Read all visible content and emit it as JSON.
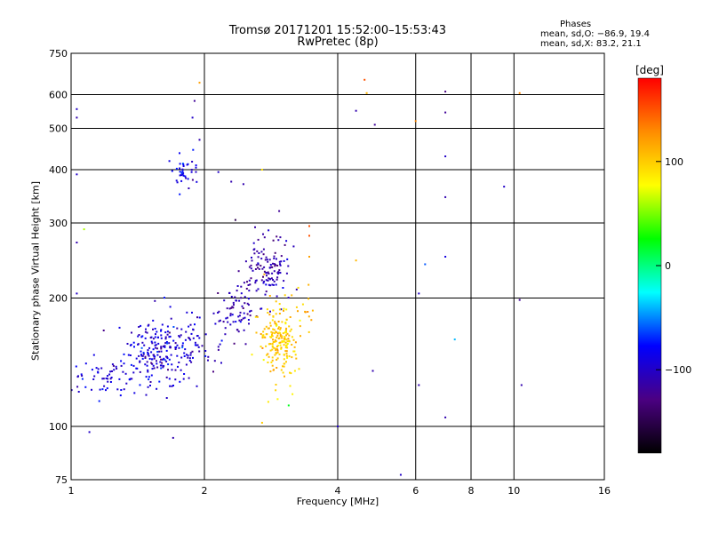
{
  "header": {
    "title_line1": "Tromsø 20171201 15:52:00–15:53:43",
    "title_line2": "RwPretec (8p)",
    "stats_title": "Phases",
    "stats_line1": "mean, sd,O: −86.9, 19.4",
    "stats_line2": "mean, sd,X:  83.2, 21.1"
  },
  "colorbar": {
    "label": "[deg]",
    "ticks": [
      {
        "value": 100,
        "label": "100"
      },
      {
        "value": 0,
        "label": "0"
      },
      {
        "value": -100,
        "label": "−100"
      }
    ],
    "range": [
      -180,
      180
    ],
    "colors": [
      "#000000",
      "#4b0082",
      "#0000ff",
      "#00ffff",
      "#00ff00",
      "#ffff00",
      "#ff8c00",
      "#ff0000"
    ]
  },
  "chart_data": {
    "type": "scatter",
    "title": "Tromsø 20171201 15:52:00–15:53:43",
    "subtitle": "RwPretec (8p)",
    "xlabel": "Frequency [MHz]",
    "ylabel": "Stationary phase Virtual Height [km]",
    "x_scale": "log",
    "y_scale": "log",
    "xlim": [
      1,
      16
    ],
    "ylim": [
      75,
      750
    ],
    "x_ticks": [
      1,
      2,
      4,
      6,
      8,
      10,
      16
    ],
    "y_ticks": [
      75,
      100,
      200,
      300,
      400,
      500,
      600,
      750
    ],
    "grid": true,
    "color_meaning": "phase [deg]",
    "clusters": [
      {
        "fc": 1.05,
        "fs": 0.03,
        "hc": 130,
        "hs": 0.05,
        "phase": -95,
        "ps": 10,
        "n": 14
      },
      {
        "fc": 1.22,
        "fs": 0.05,
        "hc": 130,
        "hs": 0.05,
        "phase": -95,
        "ps": 10,
        "n": 42
      },
      {
        "fc": 1.6,
        "fs": 0.09,
        "hc": 150,
        "hs": 0.09,
        "phase": -95,
        "ps": 14,
        "n": 230
      },
      {
        "fc": 1.97,
        "fs": 0.06,
        "hc": 160,
        "hs": 0.08,
        "phase": -100,
        "ps": 12,
        "n": 30
      },
      {
        "fc": 1.8,
        "fs": 0.04,
        "hc": 395,
        "hs": 0.04,
        "phase": -90,
        "ps": 12,
        "n": 38
      },
      {
        "fc": 2.4,
        "fs": 0.06,
        "hc": 185,
        "hs": 0.08,
        "phase": -110,
        "ps": 12,
        "n": 70
      },
      {
        "fc": 2.75,
        "fs": 0.06,
        "hc": 235,
        "hs": 0.08,
        "phase": -110,
        "ps": 12,
        "n": 120
      },
      {
        "fc": 2.95,
        "fs": 0.05,
        "hc": 160,
        "hs": 0.1,
        "phase": 100,
        "ps": 12,
        "n": 200
      },
      {
        "fc": 3.4,
        "fs": 0.03,
        "hc": 185,
        "hs": 0.08,
        "phase": 105,
        "ps": 12,
        "n": 12
      }
    ],
    "points": [
      {
        "x": 1.03,
        "y": 530,
        "phase": -110
      },
      {
        "x": 1.03,
        "y": 555,
        "phase": -100
      },
      {
        "x": 1.03,
        "y": 390,
        "phase": -100
      },
      {
        "x": 1.03,
        "y": 270,
        "phase": -110
      },
      {
        "x": 1.03,
        "y": 205,
        "phase": -100
      },
      {
        "x": 1.07,
        "y": 290,
        "phase": 60
      },
      {
        "x": 1.1,
        "y": 97,
        "phase": -100
      },
      {
        "x": 1.95,
        "y": 640,
        "phase": 120
      },
      {
        "x": 1.9,
        "y": 580,
        "phase": -120
      },
      {
        "x": 1.88,
        "y": 530,
        "phase": -100
      },
      {
        "x": 1.95,
        "y": 470,
        "phase": -110
      },
      {
        "x": 1.7,
        "y": 94,
        "phase": -110
      },
      {
        "x": 2.15,
        "y": 395,
        "phase": -100
      },
      {
        "x": 2.3,
        "y": 375,
        "phase": -110
      },
      {
        "x": 2.45,
        "y": 370,
        "phase": -110
      },
      {
        "x": 2.35,
        "y": 305,
        "phase": -150
      },
      {
        "x": 2.7,
        "y": 400,
        "phase": 90
      },
      {
        "x": 2.95,
        "y": 320,
        "phase": -120
      },
      {
        "x": 2.7,
        "y": 102,
        "phase": 100
      },
      {
        "x": 3.45,
        "y": 295,
        "phase": 150
      },
      {
        "x": 3.45,
        "y": 280,
        "phase": 150
      },
      {
        "x": 3.45,
        "y": 250,
        "phase": 120
      },
      {
        "x": 3.1,
        "y": 112,
        "phase": 20
      },
      {
        "x": 4.0,
        "y": 100,
        "phase": -100
      },
      {
        "x": 4.6,
        "y": 650,
        "phase": 150
      },
      {
        "x": 4.65,
        "y": 605,
        "phase": 110
      },
      {
        "x": 4.4,
        "y": 550,
        "phase": -110
      },
      {
        "x": 4.85,
        "y": 510,
        "phase": -120
      },
      {
        "x": 4.4,
        "y": 245,
        "phase": 110
      },
      {
        "x": 4.8,
        "y": 135,
        "phase": -110
      },
      {
        "x": 5.55,
        "y": 77,
        "phase": -100
      },
      {
        "x": 6.0,
        "y": 520,
        "phase": 130
      },
      {
        "x": 6.1,
        "y": 205,
        "phase": -100
      },
      {
        "x": 6.3,
        "y": 240,
        "phase": -60
      },
      {
        "x": 6.1,
        "y": 125,
        "phase": -110
      },
      {
        "x": 7.0,
        "y": 610,
        "phase": -130
      },
      {
        "x": 7.0,
        "y": 545,
        "phase": -120
      },
      {
        "x": 7.0,
        "y": 430,
        "phase": -100
      },
      {
        "x": 7.0,
        "y": 345,
        "phase": -110
      },
      {
        "x": 7.0,
        "y": 250,
        "phase": -90
      },
      {
        "x": 7.35,
        "y": 160,
        "phase": -40
      },
      {
        "x": 7.0,
        "y": 105,
        "phase": -110
      },
      {
        "x": 9.5,
        "y": 365,
        "phase": -100
      },
      {
        "x": 10.3,
        "y": 605,
        "phase": 130
      },
      {
        "x": 10.3,
        "y": 198,
        "phase": -120
      },
      {
        "x": 10.4,
        "y": 125,
        "phase": -110
      }
    ]
  }
}
